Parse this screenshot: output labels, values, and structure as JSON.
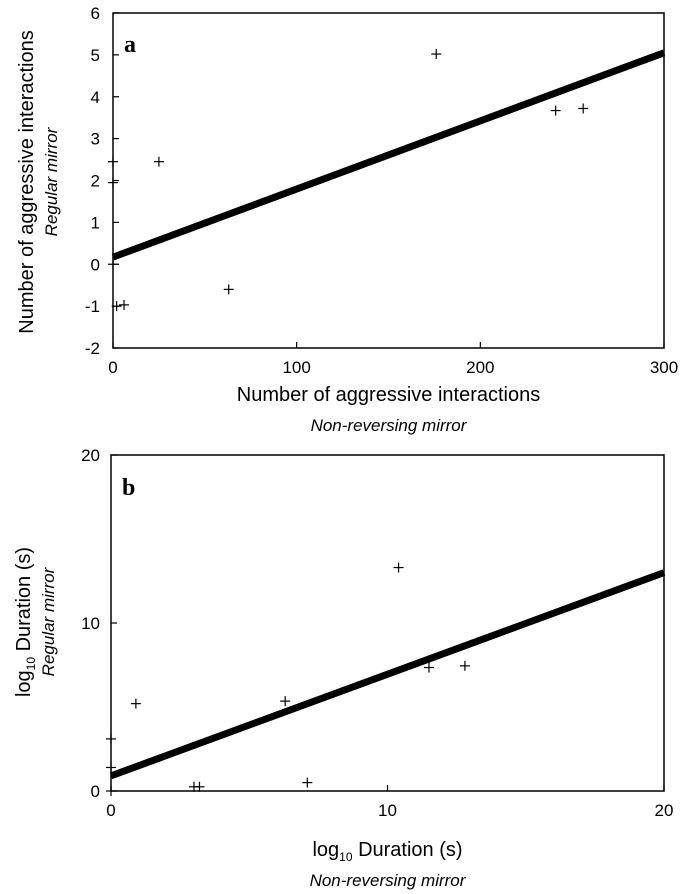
{
  "chart_data": [
    {
      "type": "scatter",
      "panel_label": "a",
      "xlabel": "Number of aggressive interactions",
      "xlabel_sub": "Non-reversing mirror",
      "ylabel": "Number of aggressive interactions",
      "ylabel_sub": "Regular mirror",
      "xlim": [
        0,
        300
      ],
      "ylim": [
        -2,
        6
      ],
      "x_ticks": [
        0,
        100,
        200,
        300
      ],
      "y_ticks": [
        -2,
        -1,
        0,
        1,
        2,
        3,
        4,
        5,
        6
      ],
      "points": [
        {
          "x": 0,
          "y": 2.45
        },
        {
          "x": 0,
          "y": 1.95
        },
        {
          "x": 0,
          "y": 0.0
        },
        {
          "x": 2,
          "y": -1.0
        },
        {
          "x": 6,
          "y": -0.97
        },
        {
          "x": 25,
          "y": 2.45
        },
        {
          "x": 63,
          "y": -0.6
        },
        {
          "x": 176,
          "y": 5.02
        },
        {
          "x": 241,
          "y": 3.67
        },
        {
          "x": 256,
          "y": 3.72
        }
      ],
      "fit_line": {
        "x": [
          0,
          300
        ],
        "y": [
          0.17,
          5.05
        ]
      }
    },
    {
      "type": "scatter",
      "panel_label": "b",
      "xlabel": "log10 Duration (s)",
      "xlabel_sub": "Non-reversing mirror",
      "ylabel": "log10 Duration (s)",
      "ylabel_sub": "Regular mirror",
      "xlim": [
        0,
        20
      ],
      "ylim": [
        0,
        20
      ],
      "x_ticks": [
        0,
        10,
        20
      ],
      "y_ticks": [
        0,
        10,
        20
      ],
      "points": [
        {
          "x": 0,
          "y": 3.1
        },
        {
          "x": 0,
          "y": 1.4
        },
        {
          "x": 0,
          "y": 0.0
        },
        {
          "x": 0.9,
          "y": 5.2
        },
        {
          "x": 3.0,
          "y": 0.25
        },
        {
          "x": 3.2,
          "y": 0.25
        },
        {
          "x": 6.3,
          "y": 5.35
        },
        {
          "x": 7.1,
          "y": 0.5
        },
        {
          "x": 10.4,
          "y": 13.3
        },
        {
          "x": 11.5,
          "y": 7.35
        },
        {
          "x": 12.8,
          "y": 7.45
        }
      ],
      "fit_line": {
        "x": [
          0,
          20
        ],
        "y": [
          0.9,
          13.0
        ]
      }
    }
  ]
}
